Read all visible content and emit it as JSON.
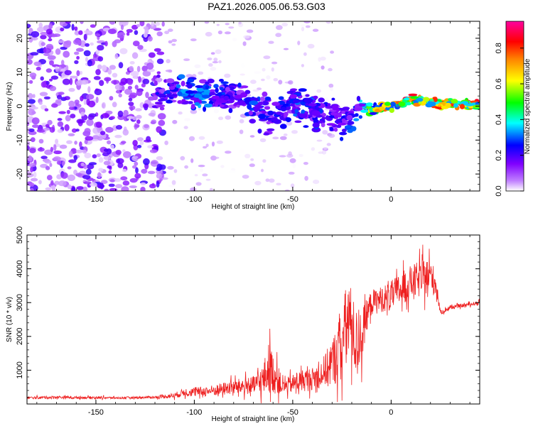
{
  "title": "PAZ1.2026.005.06.53.G03",
  "colors": {
    "snr_line": "#ee2020",
    "frame": "#000000",
    "background": "#ffffff"
  },
  "chart_data": [
    {
      "type": "heatmap",
      "name": "spectrogram",
      "xlabel": "Height of straight line (km)",
      "ylabel": "Frequency (Hz)",
      "xlim": [
        -185,
        45
      ],
      "ylim": [
        -25,
        25
      ],
      "x_ticks": [
        -150,
        -100,
        -50,
        0
      ],
      "x_tick_labels": [
        "-150",
        "-100",
        "-50",
        "0"
      ],
      "y_ticks": [
        -20,
        -10,
        0,
        10,
        20
      ],
      "y_tick_labels": [
        "-20",
        "-10",
        "0",
        "10",
        "20"
      ],
      "colorbar": {
        "label": "Normalized spectral amplitude",
        "range": [
          0,
          0.95
        ],
        "ticks": [
          0,
          0.2,
          0.4,
          0.6,
          0.8
        ],
        "tick_labels": [
          "0.0",
          "0.2",
          "0.4",
          "0.6",
          "0.8"
        ],
        "colormap": [
          "#ffffff",
          "#8000ff",
          "#0000ff",
          "#00ffff",
          "#00ff00",
          "#ffff00",
          "#ff8000",
          "#ff0000",
          "#ff00ff"
        ]
      },
      "signal_trace": {
        "x": [
          -120,
          -110,
          -100,
          -90,
          -80,
          -70,
          -60,
          -50,
          -40,
          -30,
          -20,
          -15,
          -10,
          0,
          10,
          20,
          30,
          45
        ],
        "freq": [
          4,
          4,
          4,
          3,
          3,
          0,
          -3,
          1,
          -2,
          -3,
          -4,
          0,
          -1,
          0,
          2,
          1,
          0.5,
          0.5
        ],
        "amplitude": [
          0.25,
          0.3,
          0.35,
          0.3,
          0.25,
          0.3,
          0.25,
          0.3,
          0.3,
          0.25,
          0.3,
          0.4,
          0.6,
          0.75,
          0.85,
          0.8,
          0.8,
          0.8
        ]
      }
    },
    {
      "type": "line",
      "name": "snr",
      "xlabel": "Height of straight line (km)",
      "ylabel": "SNR (10 * v/v)",
      "xlim": [
        -185,
        45
      ],
      "ylim": [
        0,
        5000
      ],
      "x_ticks": [
        -150,
        -100,
        -50,
        0
      ],
      "x_tick_labels": [
        "-150",
        "-100",
        "-50",
        "0"
      ],
      "y_ticks": [
        1000,
        2000,
        3000,
        4000,
        5000
      ],
      "y_tick_labels": [
        "1000",
        "2000",
        "3000",
        "4000",
        "5000"
      ],
      "series": [
        {
          "name": "SNR",
          "x": [
            -185,
            -170,
            -160,
            -150,
            -140,
            -130,
            -120,
            -110,
            -105,
            -100,
            -90,
            -80,
            -70,
            -65,
            -62,
            -60,
            -55,
            -50,
            -45,
            -40,
            -35,
            -30,
            -25,
            -22,
            -20,
            -18,
            -15,
            -12,
            -10,
            -5,
            0,
            5,
            10,
            15,
            20,
            23,
            25,
            30,
            35,
            40,
            45
          ],
          "base": [
            180,
            200,
            190,
            190,
            180,
            190,
            200,
            250,
            350,
            350,
            400,
            500,
            550,
            700,
            1100,
            900,
            500,
            600,
            700,
            750,
            900,
            1200,
            1800,
            2500,
            2300,
            1800,
            2000,
            2700,
            3000,
            3100,
            3200,
            3400,
            3600,
            3700,
            3800,
            3500,
            2700,
            2850,
            2900,
            2950,
            3000
          ],
          "noise": [
            60,
            80,
            70,
            70,
            60,
            60,
            70,
            150,
            220,
            250,
            300,
            400,
            500,
            900,
            1400,
            1100,
            400,
            500,
            600,
            600,
            800,
            1300,
            1900,
            2400,
            2000,
            1800,
            1500,
            800,
            700,
            700,
            800,
            900,
            900,
            1000,
            1000,
            600,
            120,
            100,
            100,
            100,
            100
          ],
          "color": "#ee2020"
        }
      ]
    }
  ]
}
